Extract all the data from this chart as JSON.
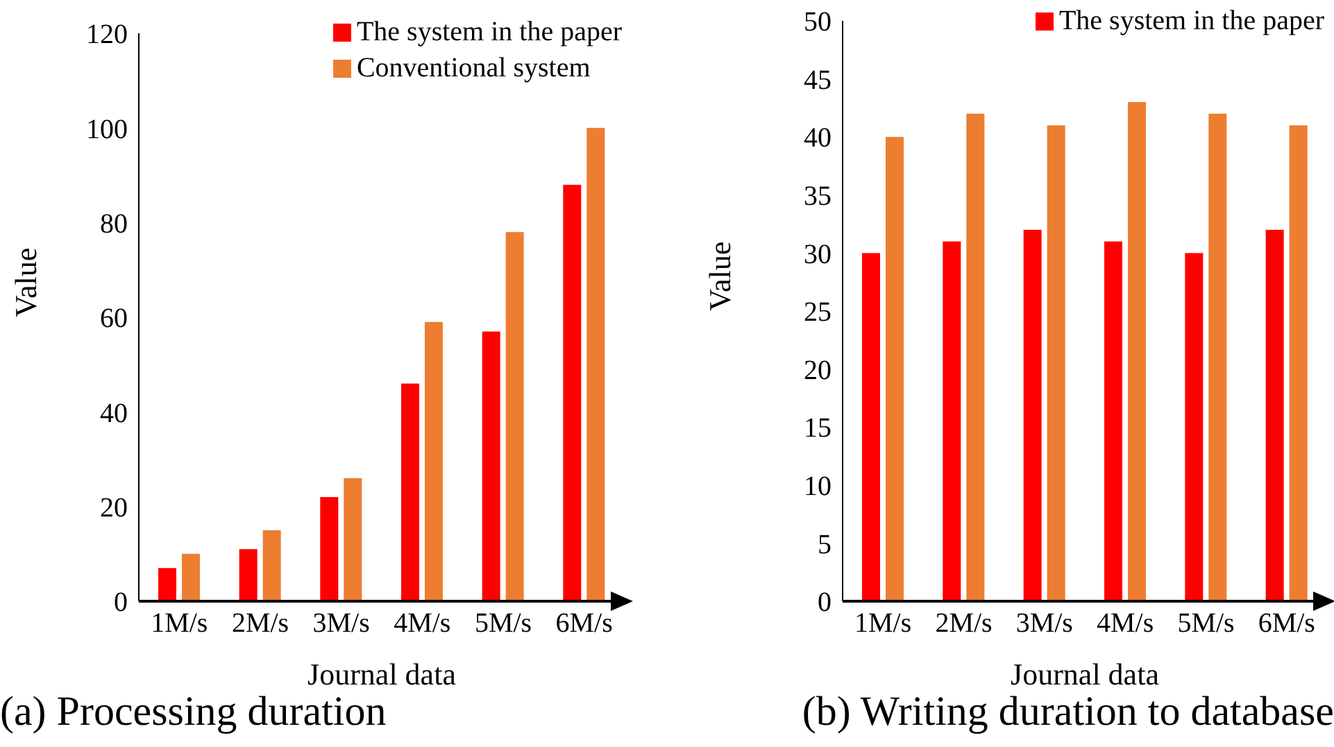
{
  "chart_data": [
    {
      "type": "bar",
      "title": "(a) Processing duration",
      "xlabel": "Journal data",
      "ylabel": "Value",
      "categories": [
        "1M/s",
        "2M/s",
        "3M/s",
        "4M/s",
        "5M/s",
        "6M/s"
      ],
      "series": [
        {
          "name": "The system in the paper",
          "color": "#ff0000",
          "values": [
            7,
            11,
            22,
            46,
            57,
            88
          ]
        },
        {
          "name": "Conventional system",
          "color": "#ed7d31",
          "values": [
            10,
            15,
            26,
            59,
            78,
            100
          ]
        }
      ],
      "ylim": [
        0,
        120
      ],
      "yticks": [
        0,
        20,
        40,
        60,
        80,
        100,
        120
      ],
      "grid": false,
      "legend": "top right"
    },
    {
      "type": "bar",
      "title": "(b) Writing duration to database",
      "xlabel": "Journal data",
      "ylabel": "Value",
      "categories": [
        "1M/s",
        "2M/s",
        "3M/s",
        "4M/s",
        "5M/s",
        "6M/s"
      ],
      "series": [
        {
          "name": "The system in the paper",
          "color": "#ff0000",
          "values": [
            30,
            31,
            32,
            31,
            30,
            32
          ]
        },
        {
          "color": "#ed7d31",
          "values": [
            40,
            42,
            41,
            43,
            42,
            41
          ]
        }
      ],
      "ylim": [
        0,
        50
      ],
      "yticks": [
        0,
        5,
        10,
        15,
        20,
        25,
        30,
        35,
        40,
        45,
        50
      ],
      "grid": false,
      "legend": "top right"
    }
  ]
}
